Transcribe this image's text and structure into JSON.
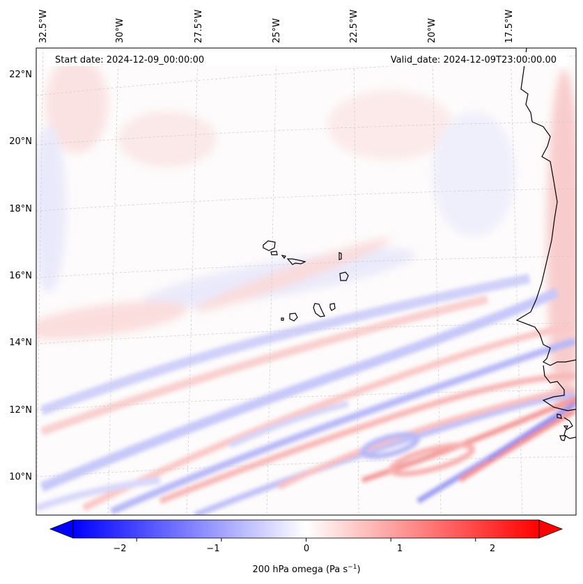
{
  "header": {
    "start_date": "Start date: 2024-12-09_00:00:00",
    "valid_date": "Valid_date: 2024-12-09T23:00:00.00"
  },
  "axes": {
    "lon_labels": [
      "32.5°W",
      "30°W",
      "27.5°W",
      "25°W",
      "22.5°W",
      "20°W",
      "17.5°W"
    ],
    "lat_labels": [
      "22°N",
      "20°N",
      "18°N",
      "16°N",
      "14°N",
      "12°N",
      "10°N"
    ]
  },
  "colorbar": {
    "label": "200 hPa omega (Pa s",
    "label_sup": "−1",
    "label_end": ")",
    "tick_labels": [
      "−2",
      "−1",
      "0",
      "1",
      "2"
    ],
    "range": [
      -2.75,
      2.75
    ],
    "ticks": [
      -2,
      -1,
      0,
      1,
      2
    ],
    "colormap": "bwr",
    "colors": {
      "negative": "#0000ff",
      "zero": "#ffffff",
      "positive": "#ff0000"
    }
  },
  "map": {
    "projection": "lambert-conformal",
    "lon_range": [
      "33°W",
      "16°W"
    ],
    "lat_range": [
      "9°N",
      "23°N"
    ],
    "gridlines": true,
    "coastline_color": "#000000"
  }
}
